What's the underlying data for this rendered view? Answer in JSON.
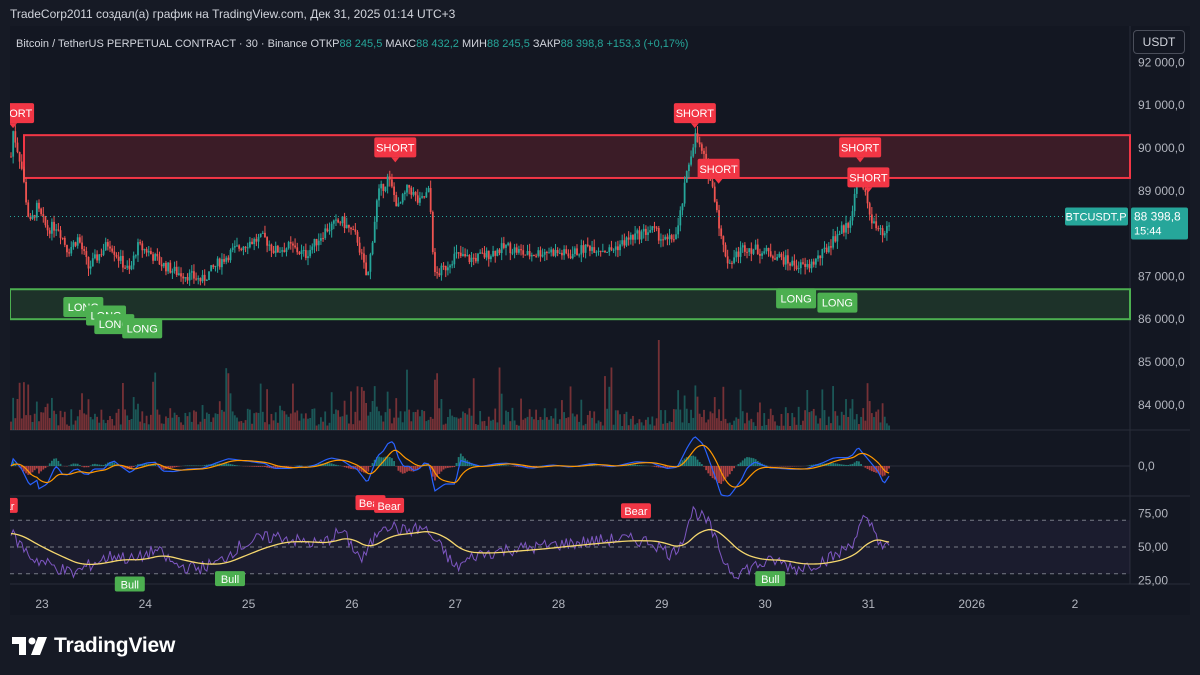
{
  "page_title": "TradeCorp2011 создал(а) график на TradingView.com, Дек 31, 2025 01:14 UTC+3",
  "header": {
    "symbol": "Bitcoin / TetherUS PERPETUAL CONTRACT · 30 · Binance",
    "ohlc": [
      {
        "label": "ОТКР",
        "value": "88 245,5"
      },
      {
        "label": "МАКС",
        "value": "88 432,2"
      },
      {
        "label": "МИН",
        "value": "88 245,5"
      },
      {
        "label": "ЗАКР",
        "value": "88 398,8"
      }
    ],
    "change": "+153,3 (+0,17%)"
  },
  "currency_button": "USDT",
  "brand": "TradingView",
  "colors": {
    "background": "#131722",
    "up": "#26a69a",
    "down": "#ef5350",
    "short_label": "#f23645",
    "long_label": "#4caf50",
    "resistance_zone": "#f23645",
    "support_zone": "#4caf50",
    "price_tag": "#26a69a",
    "macd_line": "#2962ff",
    "signal_line": "#ff9800",
    "rsi_line": "#7e57c2",
    "rsi_ma": "#f5d76e"
  },
  "chart_data": {
    "type": "candlestick",
    "symbol_tag": "BTCUSDT.P",
    "last_price": "88 398,8",
    "countdown": "15:44",
    "y_ticks": [
      {
        "value": 92000,
        "label": "92 000,0"
      },
      {
        "value": 91000,
        "label": "91 000,0"
      },
      {
        "value": 90000,
        "label": "90 000,0"
      },
      {
        "value": 89000,
        "label": "89 000,0"
      },
      {
        "value": 88000,
        "label": "88 000,0"
      },
      {
        "value": 87000,
        "label": "87 000,0"
      },
      {
        "value": 86000,
        "label": "86 000,0"
      },
      {
        "value": 85000,
        "label": "85 000,0"
      },
      {
        "value": 84000,
        "label": "84 000,0"
      }
    ],
    "x_labels": [
      {
        "label": "23",
        "day": 0
      },
      {
        "label": "24",
        "day": 1
      },
      {
        "label": "25",
        "day": 2
      },
      {
        "label": "26",
        "day": 3
      },
      {
        "label": "27",
        "day": 4
      },
      {
        "label": "28",
        "day": 5
      },
      {
        "label": "29",
        "day": 6
      },
      {
        "label": "30",
        "day": 7
      },
      {
        "label": "31",
        "day": 8
      },
      {
        "label": "2026",
        "day": 9
      },
      {
        "label": "2",
        "day": 10
      }
    ],
    "price_path": [
      [
        -0.3,
        89800
      ],
      [
        -0.28,
        90400
      ],
      [
        -0.2,
        89600
      ],
      [
        -0.12,
        88200
      ],
      [
        -0.05,
        88600
      ],
      [
        0.05,
        88100
      ],
      [
        0.15,
        88200
      ],
      [
        0.25,
        87600
      ],
      [
        0.35,
        87900
      ],
      [
        0.45,
        87200
      ],
      [
        0.55,
        87500
      ],
      [
        0.65,
        87800
      ],
      [
        0.75,
        87400
      ],
      [
        0.85,
        87100
      ],
      [
        0.92,
        87700
      ],
      [
        1.02,
        87600
      ],
      [
        1.15,
        87300
      ],
      [
        1.3,
        87100
      ],
      [
        1.45,
        87000
      ],
      [
        1.55,
        86900
      ],
      [
        1.7,
        87300
      ],
      [
        1.85,
        87600
      ],
      [
        2.0,
        87800
      ],
      [
        2.15,
        87900
      ],
      [
        2.25,
        87600
      ],
      [
        2.4,
        87700
      ],
      [
        2.55,
        87500
      ],
      [
        2.75,
        88100
      ],
      [
        2.9,
        88300
      ],
      [
        3.05,
        87900
      ],
      [
        3.15,
        86900
      ],
      [
        3.25,
        88900
      ],
      [
        3.35,
        89300
      ],
      [
        3.45,
        88600
      ],
      [
        3.55,
        89100
      ],
      [
        3.65,
        88700
      ],
      [
        3.75,
        89000
      ],
      [
        3.8,
        87000
      ],
      [
        3.9,
        87200
      ],
      [
        4.0,
        87500
      ],
      [
        4.15,
        87400
      ],
      [
        4.3,
        87500
      ],
      [
        4.5,
        87700
      ],
      [
        4.7,
        87500
      ],
      [
        4.9,
        87600
      ],
      [
        5.1,
        87500
      ],
      [
        5.3,
        87700
      ],
      [
        5.5,
        87600
      ],
      [
        5.7,
        87900
      ],
      [
        5.9,
        88100
      ],
      [
        6.05,
        87800
      ],
      [
        6.15,
        88000
      ],
      [
        6.25,
        89500
      ],
      [
        6.32,
        90300
      ],
      [
        6.42,
        89700
      ],
      [
        6.52,
        88800
      ],
      [
        6.58,
        87800
      ],
      [
        6.65,
        87300
      ],
      [
        6.72,
        87500
      ],
      [
        6.8,
        87700
      ],
      [
        6.95,
        87600
      ],
      [
        7.1,
        87500
      ],
      [
        7.25,
        87300
      ],
      [
        7.4,
        87200
      ],
      [
        7.55,
        87500
      ],
      [
        7.7,
        88000
      ],
      [
        7.8,
        88200
      ],
      [
        7.85,
        88600
      ],
      [
        7.9,
        89400
      ],
      [
        7.98,
        88800
      ],
      [
        8.05,
        88200
      ],
      [
        8.15,
        87900
      ],
      [
        8.22,
        88300
      ]
    ],
    "short_signals": [
      {
        "day": -0.28,
        "price": 90300
      },
      {
        "day": 3.42,
        "price": 89500
      },
      {
        "day": 6.32,
        "price": 90300
      },
      {
        "day": 6.55,
        "price": 89000
      },
      {
        "day": 7.92,
        "price": 89500
      },
      {
        "day": 8.0,
        "price": 88800
      }
    ],
    "long_signals": [
      {
        "day": 0.4,
        "price": 86800
      },
      {
        "day": 0.62,
        "price": 86600
      },
      {
        "day": 0.7,
        "price": 86400
      },
      {
        "day": 0.97,
        "price": 86300
      },
      {
        "day": 7.3,
        "price": 87000
      },
      {
        "day": 7.7,
        "price": 86900
      }
    ],
    "resistance_zone": {
      "from": 89300,
      "to": 90300
    },
    "support_zone": {
      "from": 86000,
      "to": 86700
    },
    "macd": {
      "zero_label": "0,0"
    },
    "rsi": {
      "ticks": [
        {
          "value": 75,
          "label": "75,00"
        },
        {
          "value": 50,
          "label": "50,00"
        },
        {
          "value": 25,
          "label": "25,00"
        }
      ],
      "bands": [
        70,
        50,
        30
      ],
      "path": [
        [
          -0.3,
          60
        ],
        [
          -0.1,
          42
        ],
        [
          0.1,
          36
        ],
        [
          0.3,
          30
        ],
        [
          0.5,
          38
        ],
        [
          0.7,
          44
        ],
        [
          0.9,
          40
        ],
        [
          1.1,
          48
        ],
        [
          1.3,
          36
        ],
        [
          1.5,
          34
        ],
        [
          1.7,
          38
        ],
        [
          1.9,
          50
        ],
        [
          2.1,
          56
        ],
        [
          2.3,
          58
        ],
        [
          2.5,
          54
        ],
        [
          2.7,
          52
        ],
        [
          2.9,
          62
        ],
        [
          3.1,
          40
        ],
        [
          3.3,
          68
        ],
        [
          3.5,
          62
        ],
        [
          3.7,
          64
        ],
        [
          3.9,
          46
        ],
        [
          4.0,
          34
        ],
        [
          4.2,
          44
        ],
        [
          4.5,
          48
        ],
        [
          4.8,
          50
        ],
        [
          5.0,
          52
        ],
        [
          5.3,
          54
        ],
        [
          5.6,
          56
        ],
        [
          5.9,
          54
        ],
        [
          6.1,
          44
        ],
        [
          6.2,
          56
        ],
        [
          6.3,
          78
        ],
        [
          6.45,
          68
        ],
        [
          6.6,
          40
        ],
        [
          6.7,
          30
        ],
        [
          6.9,
          36
        ],
        [
          7.1,
          40
        ],
        [
          7.3,
          34
        ],
        [
          7.5,
          38
        ],
        [
          7.7,
          44
        ],
        [
          7.85,
          54
        ],
        [
          7.95,
          70
        ],
        [
          8.05,
          64
        ],
        [
          8.15,
          48
        ],
        [
          8.22,
          52
        ]
      ],
      "signals": [
        {
          "text": "Bull",
          "day": 0.85,
          "value": 28,
          "kind": "bull"
        },
        {
          "text": "Bull",
          "day": 1.82,
          "value": 32,
          "kind": "bull"
        },
        {
          "text": "Bull",
          "day": 7.05,
          "value": 32,
          "kind": "bull"
        },
        {
          "text": "Bear",
          "day": -0.38,
          "value": 74,
          "kind": "bear"
        },
        {
          "text": "Bear",
          "day": 3.18,
          "value": 76,
          "kind": "bear"
        },
        {
          "text": "Bear",
          "day": 3.36,
          "value": 74,
          "kind": "bear"
        },
        {
          "text": "Bear",
          "day": 5.75,
          "value": 70,
          "kind": "bear"
        }
      ]
    }
  }
}
